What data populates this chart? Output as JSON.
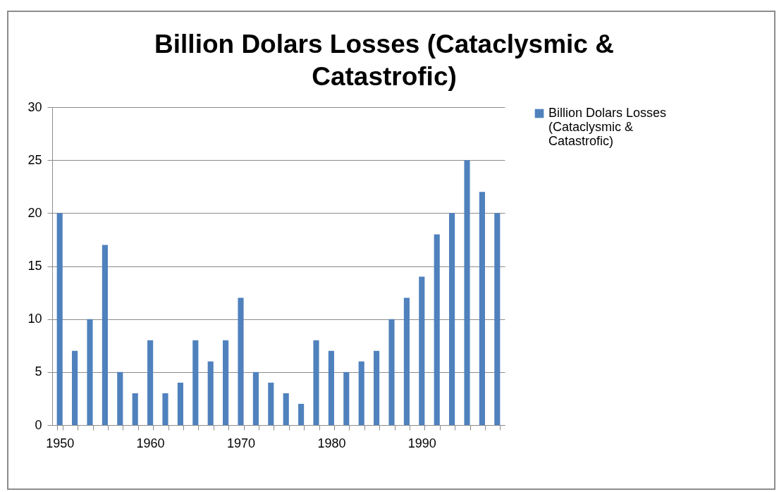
{
  "chart_data": {
    "type": "bar",
    "title": "Billion Dolars Losses (Cataclysmic & Catastrofic)",
    "categories": [
      "1950",
      null,
      null,
      null,
      null,
      null,
      "1960",
      null,
      null,
      null,
      null,
      null,
      "1970",
      null,
      null,
      null,
      null,
      null,
      "1980",
      null,
      null,
      null,
      null,
      null,
      "1990",
      null,
      null,
      null,
      null,
      null
    ],
    "series": [
      {
        "name": "Billion Dolars Losses (Cataclysmic & Catastrofic)",
        "color": "#4f81bd",
        "values": [
          20,
          7,
          10,
          17,
          5,
          3,
          8,
          3,
          4,
          8,
          6,
          8,
          12,
          5,
          4,
          3,
          2,
          8,
          7,
          5,
          6,
          7,
          10,
          12,
          14,
          18,
          20,
          25,
          22,
          20
        ]
      }
    ],
    "ylim": [
      0,
      30
    ],
    "yticks": [
      0,
      5,
      10,
      15,
      20,
      25,
      30
    ],
    "grid": "y",
    "legend": "right"
  }
}
